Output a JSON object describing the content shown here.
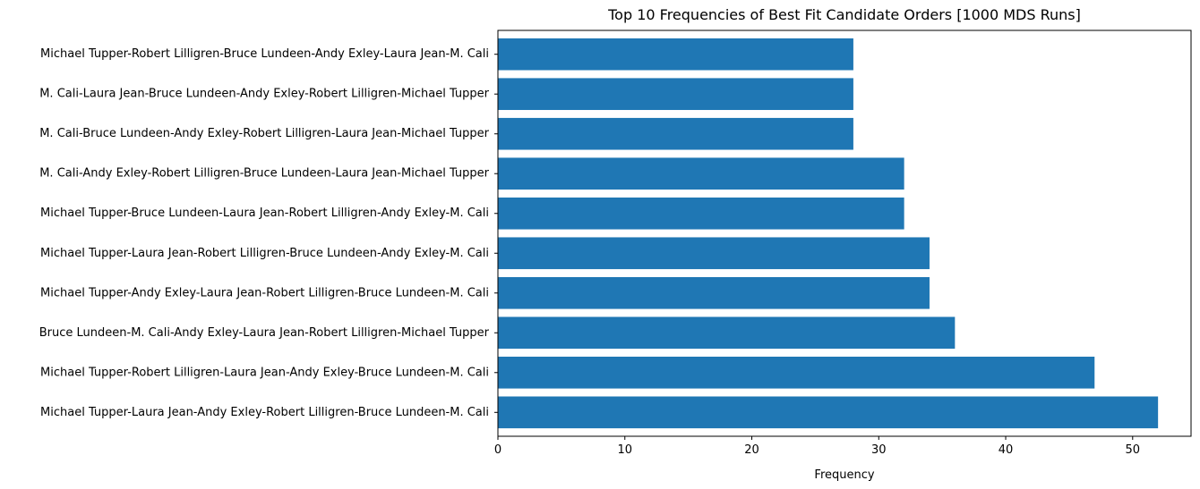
{
  "chart_data": {
    "type": "bar",
    "orientation": "horizontal",
    "title": "Top 10 Frequencies of Best Fit Candidate Orders [1000 MDS Runs]",
    "xlabel": "Frequency",
    "ylabel": "",
    "xlim": [
      0,
      54.6
    ],
    "xticks": [
      0,
      10,
      20,
      30,
      40,
      50
    ],
    "grid": false,
    "legend": "none",
    "bar_color": "#1f77b4",
    "categories": [
      "Michael Tupper-Laura Jean-Andy Exley-Robert Lilligren-Bruce Lundeen-M. Cali",
      "Michael Tupper-Robert Lilligren-Laura Jean-Andy Exley-Bruce Lundeen-M. Cali",
      "Bruce Lundeen-M. Cali-Andy Exley-Laura Jean-Robert Lilligren-Michael Tupper",
      "Michael Tupper-Andy Exley-Laura Jean-Robert Lilligren-Bruce Lundeen-M. Cali",
      "Michael Tupper-Laura Jean-Robert Lilligren-Bruce Lundeen-Andy Exley-M. Cali",
      "Michael Tupper-Bruce Lundeen-Laura Jean-Robert Lilligren-Andy Exley-M. Cali",
      "M. Cali-Andy Exley-Robert Lilligren-Bruce Lundeen-Laura Jean-Michael Tupper",
      "M. Cali-Bruce Lundeen-Andy Exley-Robert Lilligren-Laura Jean-Michael Tupper",
      "M. Cali-Laura Jean-Bruce Lundeen-Andy Exley-Robert Lilligren-Michael Tupper",
      "Michael Tupper-Robert Lilligren-Bruce Lundeen-Andy Exley-Laura Jean-M. Cali"
    ],
    "values": [
      52,
      47,
      36,
      34,
      34,
      32,
      32,
      28,
      28,
      28
    ]
  }
}
